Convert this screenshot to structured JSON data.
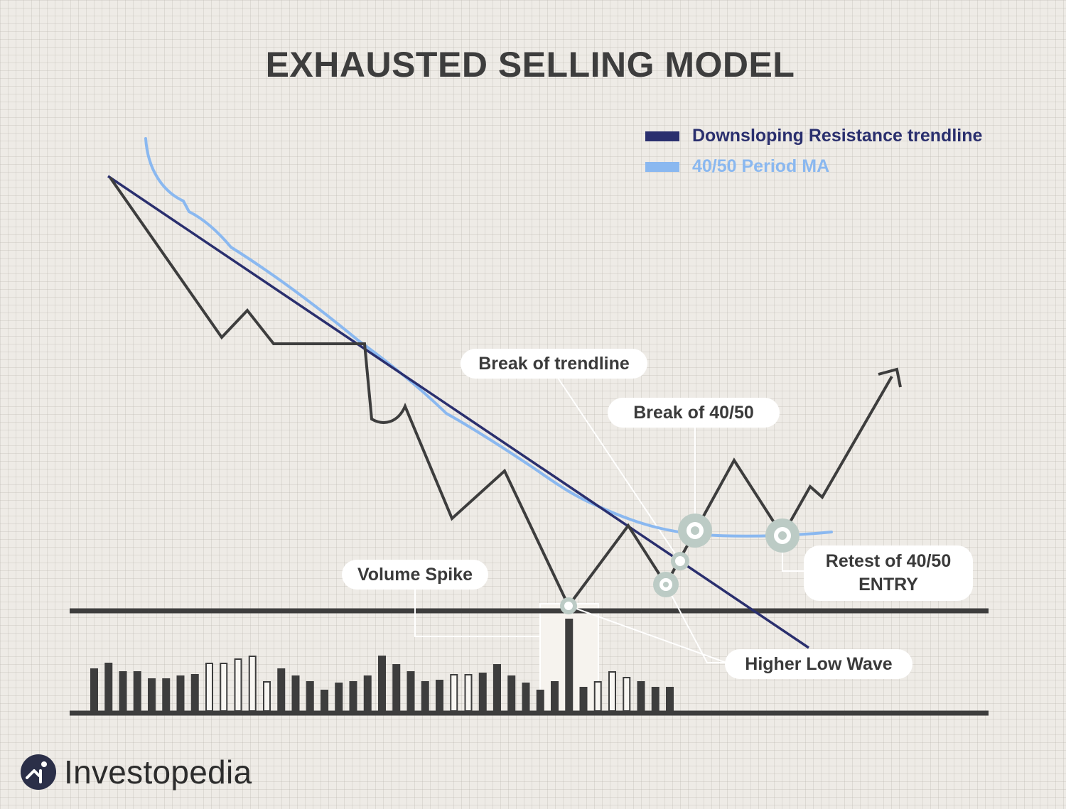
{
  "title": "EXHAUSTED SELLING MODEL",
  "legend": [
    {
      "label": "Downsloping Resistance trendline",
      "color": "#2a2f6e"
    },
    {
      "label": "40/50 Period MA",
      "color": "#8ab8f0"
    }
  ],
  "callouts": {
    "break_trendline": "Break of trendline",
    "break_ma": "Break of 40/50",
    "volume_spike": "Volume Spike",
    "higher_low": "Higher Low Wave",
    "retest_line1": "Retest of 40/50",
    "retest_line2": "ENTRY"
  },
  "volume_bars": [
    {
      "h": 60,
      "filled": true
    },
    {
      "h": 68,
      "filled": true
    },
    {
      "h": 56,
      "filled": true
    },
    {
      "h": 56,
      "filled": true
    },
    {
      "h": 46,
      "filled": true
    },
    {
      "h": 46,
      "filled": true
    },
    {
      "h": 50,
      "filled": true
    },
    {
      "h": 52,
      "filled": true
    },
    {
      "h": 68,
      "filled": false
    },
    {
      "h": 68,
      "filled": false
    },
    {
      "h": 74,
      "filled": false
    },
    {
      "h": 78,
      "filled": false
    },
    {
      "h": 42,
      "filled": false
    },
    {
      "h": 60,
      "filled": true
    },
    {
      "h": 50,
      "filled": true
    },
    {
      "h": 42,
      "filled": true
    },
    {
      "h": 30,
      "filled": true
    },
    {
      "h": 40,
      "filled": true
    },
    {
      "h": 42,
      "filled": true
    },
    {
      "h": 50,
      "filled": true
    },
    {
      "h": 78,
      "filled": true
    },
    {
      "h": 66,
      "filled": true
    },
    {
      "h": 56,
      "filled": true
    },
    {
      "h": 42,
      "filled": true
    },
    {
      "h": 44,
      "filled": true
    },
    {
      "h": 52,
      "filled": false
    },
    {
      "h": 52,
      "filled": false
    },
    {
      "h": 54,
      "filled": true
    },
    {
      "h": 66,
      "filled": true
    },
    {
      "h": 50,
      "filled": true
    },
    {
      "h": 40,
      "filled": true
    },
    {
      "h": 30,
      "filled": true
    },
    {
      "h": 42,
      "filled": true
    },
    {
      "h": 130,
      "filled": true
    },
    {
      "h": 34,
      "filled": true
    },
    {
      "h": 42,
      "filled": false
    },
    {
      "h": 56,
      "filled": false
    },
    {
      "h": 48,
      "filled": false
    },
    {
      "h": 42,
      "filled": true
    },
    {
      "h": 34,
      "filled": true
    },
    {
      "h": 34,
      "filled": true
    }
  ],
  "brand": {
    "name": "Investopedia"
  }
}
